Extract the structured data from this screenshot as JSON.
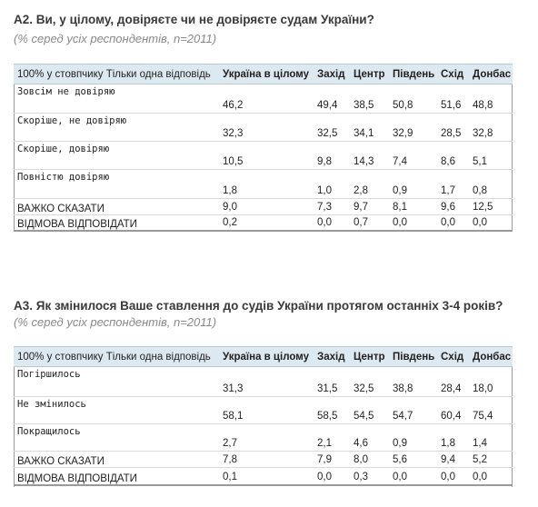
{
  "columns": [
    "100% у стовпчику Тільки одна відповідь",
    "Україна в цілому",
    "Захід",
    "Центр",
    "Південь",
    "Схід",
    "Донбас"
  ],
  "q1": {
    "title": "А2. Ви, у цілому, довіряєте чи не довіряєте судам України?",
    "subtitle": "(% серед усіх респондентів, n=2011)",
    "rows": [
      {
        "label": "Зовсім не довіряю",
        "values": [
          "46,2",
          "49,4",
          "38,5",
          "50,8",
          "51,6",
          "48,8"
        ]
      },
      {
        "label": "Скоріше, не довіряю",
        "values": [
          "32,3",
          "32,5",
          "34,1",
          "32,9",
          "28,5",
          "32,8"
        ]
      },
      {
        "label": "Скоріше, довіряю",
        "values": [
          "10,5",
          "9,8",
          "14,3",
          "7,4",
          "8,6",
          "5,1"
        ]
      },
      {
        "label": "Повністю довіряю",
        "values": [
          "1,8",
          "1,0",
          "2,8",
          "0,9",
          "1,7",
          "0,8"
        ]
      },
      {
        "label": "ВАЖКО СКАЗАТИ",
        "values": [
          "9,0",
          "7,3",
          "9,7",
          "8,1",
          "9,6",
          "12,5"
        ]
      },
      {
        "label": "ВІДМОВА ВІДПОВІДАТИ",
        "values": [
          "0,2",
          "0,0",
          "0,7",
          "0,0",
          "0,0",
          "0,0"
        ]
      }
    ]
  },
  "q2": {
    "title": "А3. Як змінилося Ваше ставлення до судів України протягом останніх 3-4 років?",
    "subtitle": "(% серед усіх респондентів, n=2011)",
    "rows": [
      {
        "label": "Погіршилось",
        "values": [
          "31,3",
          "31,5",
          "32,5",
          "38,8",
          "28,4",
          "18,0"
        ]
      },
      {
        "label": "Не змінилось",
        "values": [
          "58,1",
          "58,5",
          "54,5",
          "54,7",
          "60,4",
          "75,4"
        ]
      },
      {
        "label": "Покращилось",
        "values": [
          "2,7",
          "2,1",
          "4,6",
          "0,9",
          "1,8",
          "1,4"
        ]
      },
      {
        "label": "ВАЖКО СКАЗАТИ",
        "values": [
          "7,8",
          "7,9",
          "8,0",
          "5,6",
          "9,4",
          "5,2"
        ]
      },
      {
        "label": "ВІДМОВА ВІДПОВІДАТИ",
        "values": [
          "0,1",
          "0,0",
          "0,3",
          "0,0",
          "0,0",
          "0,0"
        ]
      }
    ]
  }
}
